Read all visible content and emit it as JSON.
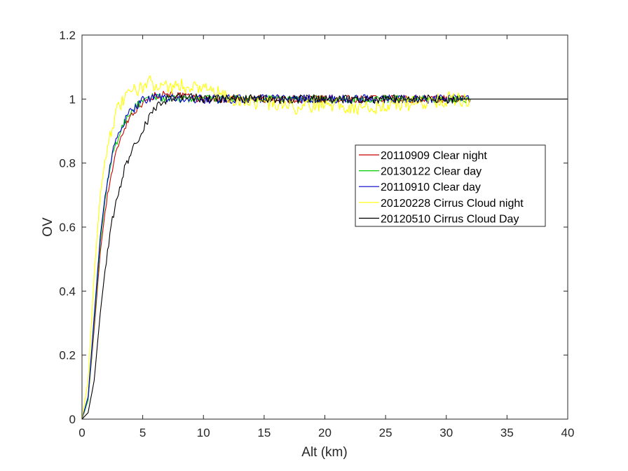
{
  "chart_data": {
    "type": "line",
    "xlabel": "Alt (km)",
    "ylabel": "OV",
    "xlim": [
      0,
      40
    ],
    "ylim": [
      0,
      1.2
    ],
    "xticks": [
      0,
      5,
      10,
      15,
      20,
      25,
      30,
      35,
      40
    ],
    "yticks": [
      0,
      0.2,
      0.4,
      0.6,
      0.8,
      1,
      1.2
    ],
    "xtick_labels": [
      "0",
      "5",
      "10",
      "15",
      "20",
      "25",
      "30",
      "35",
      "40"
    ],
    "ytick_labels": [
      "0",
      "0.2",
      "0.4",
      "0.6",
      "0.8",
      "1",
      "1.2"
    ],
    "grid": false,
    "legend_position": "right",
    "series": [
      {
        "name": "20110909 Clear night",
        "color": "#cc0000",
        "x": [
          0,
          0.5,
          1,
          1.5,
          2,
          2.5,
          3,
          3.5,
          4,
          4.5,
          5,
          5.5,
          6,
          7,
          8,
          10,
          12,
          15,
          20,
          25,
          30,
          32
        ],
        "y": [
          0,
          0.06,
          0.28,
          0.52,
          0.68,
          0.78,
          0.86,
          0.91,
          0.95,
          0.97,
          0.99,
          1.0,
          1.01,
          1.02,
          1.01,
          1.0,
          1.0,
          1.0,
          1.0,
          1.0,
          1.0,
          1.0
        ]
      },
      {
        "name": "20130122 Clear day",
        "color": "#00cc00",
        "x": [
          0,
          0.5,
          1,
          1.5,
          2,
          2.5,
          3,
          3.5,
          4,
          4.5,
          5,
          5.5,
          6,
          7,
          8,
          10,
          12,
          15,
          20,
          25,
          30,
          32
        ],
        "y": [
          0,
          0.06,
          0.3,
          0.55,
          0.72,
          0.82,
          0.88,
          0.93,
          0.96,
          0.98,
          0.99,
          1.0,
          1.01,
          1.0,
          1.0,
          1.0,
          1.0,
          1.0,
          1.0,
          1.0,
          1.0,
          1.0
        ]
      },
      {
        "name": "20110910 Clear day",
        "color": "#0000cc",
        "x": [
          0,
          0.5,
          1,
          1.5,
          2,
          2.5,
          3,
          3.5,
          4,
          4.5,
          5,
          5.5,
          6,
          7,
          8,
          10,
          12,
          15,
          20,
          25,
          30,
          32
        ],
        "y": [
          0,
          0.07,
          0.32,
          0.57,
          0.73,
          0.83,
          0.89,
          0.93,
          0.96,
          0.98,
          1.0,
          1.0,
          1.01,
          1.0,
          1.0,
          1.0,
          1.0,
          1.0,
          1.0,
          1.0,
          1.0,
          1.0
        ]
      },
      {
        "name": "20120228 Cirrus Cloud night",
        "color": "#ffff00",
        "x": [
          0,
          0.5,
          1,
          1.5,
          2,
          2.5,
          3,
          3.5,
          4,
          4.5,
          5,
          5.5,
          6,
          7,
          8,
          10,
          11,
          12,
          15,
          18,
          20,
          23,
          25,
          28,
          30,
          32
        ],
        "y": [
          0,
          0.12,
          0.45,
          0.7,
          0.84,
          0.92,
          0.97,
          1.0,
          1.02,
          1.03,
          1.04,
          1.05,
          1.05,
          1.04,
          1.04,
          1.04,
          1.02,
          1.0,
          0.99,
          0.97,
          0.99,
          0.97,
          0.98,
          0.99,
          1.0,
          1.0
        ]
      },
      {
        "name": "20120510 Cirrus Cloud Day",
        "color": "#000000",
        "x": [
          0,
          0.5,
          1,
          1.5,
          2,
          2.5,
          3,
          3.5,
          4,
          4.5,
          5,
          5.5,
          6,
          6.5,
          7,
          8,
          10,
          12,
          15,
          20,
          25,
          30,
          35,
          40
        ],
        "y": [
          0,
          0.02,
          0.12,
          0.33,
          0.5,
          0.62,
          0.71,
          0.78,
          0.83,
          0.87,
          0.9,
          0.94,
          0.97,
          0.99,
          1.0,
          1.01,
          1.0,
          1.0,
          1.0,
          1.0,
          1.0,
          1.0,
          1.0,
          1.0
        ]
      }
    ]
  }
}
